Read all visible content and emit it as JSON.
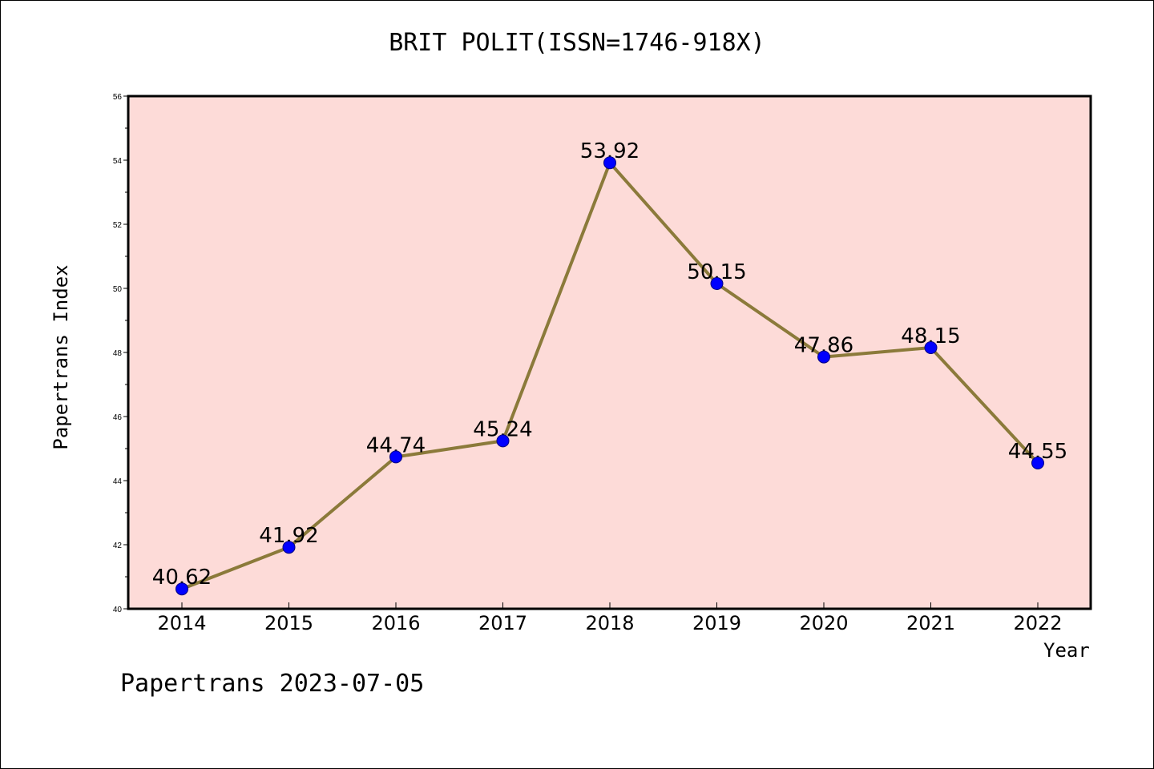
{
  "title": "BRIT POLIT(ISSN=1746-918X)",
  "footer": "Papertrans 2023-07-05",
  "colors": {
    "plot_background": "#fddbd8",
    "line": "#8b7a3a",
    "marker": "#0000ff",
    "marker_edge": "#000080"
  },
  "chart_data": {
    "type": "line",
    "title": "BRIT POLIT(ISSN=1746-918X)",
    "xlabel": "Year",
    "ylabel": "Papertrans Index",
    "categories": [
      "2014",
      "2015",
      "2016",
      "2017",
      "2018",
      "2019",
      "2020",
      "2021",
      "2022"
    ],
    "series": [
      {
        "values": [
          40.62,
          41.92,
          44.74,
          45.24,
          53.92,
          50.15,
          47.86,
          48.15,
          44.55
        ],
        "labels": [
          "40.62",
          "41.92",
          "44.74",
          "45.24",
          "53.92",
          "50.15",
          "47.86",
          "48.15",
          "44.55"
        ]
      }
    ],
    "ylim": [
      40,
      56
    ],
    "yticks": [
      40,
      42,
      44,
      46,
      48,
      50,
      52,
      54,
      56
    ],
    "grid": false,
    "legend": "none"
  }
}
